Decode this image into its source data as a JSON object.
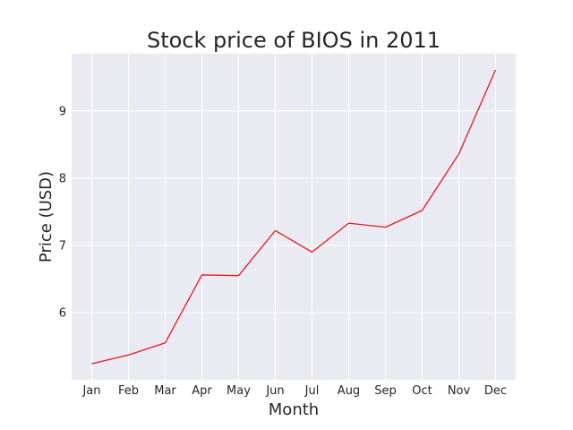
{
  "chart_data": {
    "type": "line",
    "title": "Stock price of BIOS in 2011",
    "xlabel": "Month",
    "ylabel": "Price (USD)",
    "categories": [
      "Jan",
      "Feb",
      "Mar",
      "Apr",
      "May",
      "Jun",
      "Jul",
      "Aug",
      "Sep",
      "Oct",
      "Nov",
      "Dec"
    ],
    "series": [
      {
        "values": [
          5.24,
          5.37,
          5.55,
          6.56,
          6.55,
          7.22,
          6.9,
          7.33,
          7.27,
          7.52,
          8.36,
          9.61
        ],
        "color": "#e41a1c"
      }
    ],
    "yticks": [
      6,
      7,
      8,
      9
    ],
    "ylim": [
      5.0,
      9.85
    ],
    "grid": true,
    "legend": "none",
    "background_color": "#eaeaf2",
    "grid_color": "#ffffff"
  }
}
